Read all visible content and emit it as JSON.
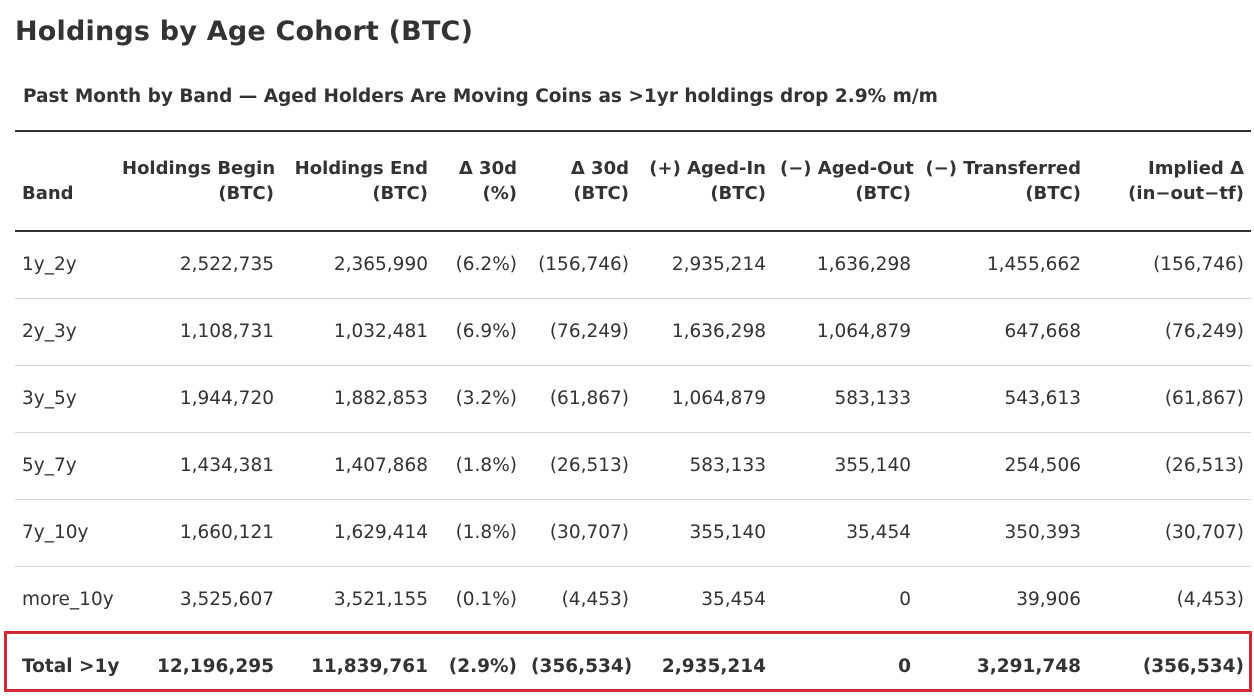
{
  "title": "Holdings by Age Cohort (BTC)",
  "subtitle": "Past Month by Band — Aged Holders Are Moving Coins as >1yr holdings drop 2.9% m/m",
  "highlight_color": "#cf2b37",
  "columns": [
    {
      "line1": "",
      "line2": "Band"
    },
    {
      "line1": "Holdings Begin",
      "line2": "(BTC)"
    },
    {
      "line1": "Holdings End",
      "line2": "(BTC)"
    },
    {
      "line1": "Δ 30d",
      "line2": "(%)"
    },
    {
      "line1": "Δ 30d",
      "line2": "(BTC)"
    },
    {
      "line1": "(+) Aged-In",
      "line2": "(BTC)"
    },
    {
      "line1": "(−) Aged-Out",
      "line2": "(BTC)"
    },
    {
      "line1": "(−) Transferred",
      "line2": "(BTC)"
    },
    {
      "line1": "Implied Δ",
      "line2": "(in−out−tf)"
    }
  ],
  "rows": [
    [
      "1y_2y",
      "2,522,735",
      "2,365,990",
      "(6.2%)",
      "(156,746)",
      "2,935,214",
      "1,636,298",
      "1,455,662",
      "(156,746)"
    ],
    [
      "2y_3y",
      "1,108,731",
      "1,032,481",
      "(6.9%)",
      "(76,249)",
      "1,636,298",
      "1,064,879",
      "647,668",
      "(76,249)"
    ],
    [
      "3y_5y",
      "1,944,720",
      "1,882,853",
      "(3.2%)",
      "(61,867)",
      "1,064,879",
      "583,133",
      "543,613",
      "(61,867)"
    ],
    [
      "5y_7y",
      "1,434,381",
      "1,407,868",
      "(1.8%)",
      "(26,513)",
      "583,133",
      "355,140",
      "254,506",
      "(26,513)"
    ],
    [
      "7y_10y",
      "1,660,121",
      "1,629,414",
      "(1.8%)",
      "(30,707)",
      "355,140",
      "35,454",
      "350,393",
      "(30,707)"
    ],
    [
      "more_10y",
      "3,525,607",
      "3,521,155",
      "(0.1%)",
      "(4,453)",
      "35,454",
      "0",
      "39,906",
      "(4,453)"
    ]
  ],
  "total": [
    "Total >1y",
    "12,196,295",
    "11,839,761",
    "(2.9%)",
    "(356,534)",
    "2,935,214",
    "0",
    "3,291,748",
    "(356,534)"
  ]
}
